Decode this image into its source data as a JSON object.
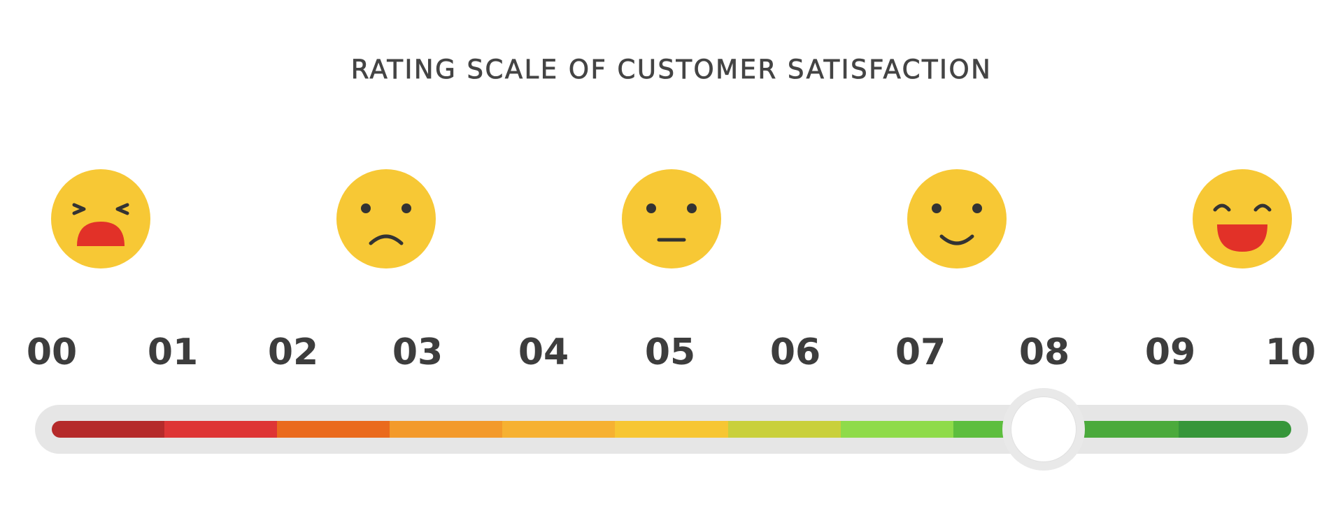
{
  "title": "RATING SCALE OF CUSTOMER SATISFACTION",
  "faces": [
    {
      "name": "angry-face-icon",
      "expression": "crying"
    },
    {
      "name": "sad-face-icon",
      "expression": "sad"
    },
    {
      "name": "neutral-face-icon",
      "expression": "neutral"
    },
    {
      "name": "smile-face-icon",
      "expression": "smile"
    },
    {
      "name": "laughing-face-icon",
      "expression": "laughing"
    }
  ],
  "scale_labels": [
    "00",
    "01",
    "02",
    "03",
    "04",
    "05",
    "06",
    "07",
    "08",
    "09",
    "10"
  ],
  "segment_colors": [
    "#b52a2a",
    "#de3535",
    "#ea6a1d",
    "#f39a2b",
    "#f6b132",
    "#f7c633",
    "#c9d03c",
    "#8fdb4a",
    "#5dbe3e",
    "#4baa3c",
    "#36963a"
  ],
  "colors": {
    "face_fill": "#f7c835",
    "face_features": "#333333",
    "mouth_red": "#e23128",
    "track": "#e6e6e6",
    "knob": "#ffffff"
  },
  "slider": {
    "value": 8,
    "min": 0,
    "max": 10
  }
}
